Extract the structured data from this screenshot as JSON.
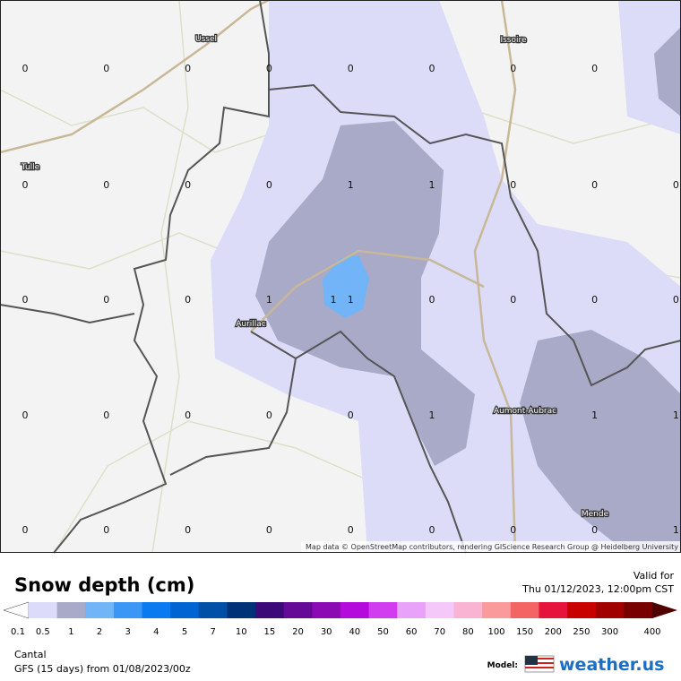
{
  "map": {
    "cities": [
      "Ussel",
      "Issoire",
      "Tulle",
      "Aurillac",
      "Aumont-Aubrac",
      "Mende"
    ],
    "grid": {
      "rows": [
        [
          0,
          0,
          0,
          0,
          0,
          0,
          0,
          0,
          null
        ],
        [
          0,
          0,
          0,
          0,
          1,
          1,
          0,
          0,
          0
        ],
        [
          0,
          0,
          0,
          1,
          1,
          0,
          0,
          0,
          0
        ],
        [
          0,
          0,
          0,
          0,
          0,
          1,
          null,
          1,
          1
        ],
        [
          0,
          0,
          0,
          0,
          0,
          0,
          0,
          0,
          1
        ]
      ]
    },
    "peak_label": 1,
    "attribution": "Map data © OpenStreetMap contributors, rendering GIScience Research Group @ Heidelberg University"
  },
  "legend": {
    "title": "Snow depth (cm)",
    "valid_label": "Valid for",
    "valid_time": "Thu 01/12/2023, 12:00pm CST",
    "labels": [
      0.1,
      0.5,
      1,
      2,
      3,
      4,
      5,
      7,
      10,
      15,
      20,
      30,
      40,
      50,
      60,
      70,
      80,
      100,
      150,
      200,
      250,
      300,
      400
    ],
    "colors": [
      "#dcdcfa",
      "#a9a9c8",
      "#72b4f8",
      "#3c96f5",
      "#0a7af0",
      "#0064d2",
      "#0050a8",
      "#003278",
      "#3c0a78",
      "#640a96",
      "#8c0ab4",
      "#b40adc",
      "#d23cf0",
      "#e8a2fa",
      "#f5c8fa",
      "#f8b4d2",
      "#fa9a9a",
      "#f56464",
      "#e6143c",
      "#c80000",
      "#a00000",
      "#780000"
    ],
    "region": "Cantal",
    "model_run": "GFS (15 days) from  01/08/2023/00z",
    "model_label": "Model:",
    "brand": "weather.us"
  }
}
